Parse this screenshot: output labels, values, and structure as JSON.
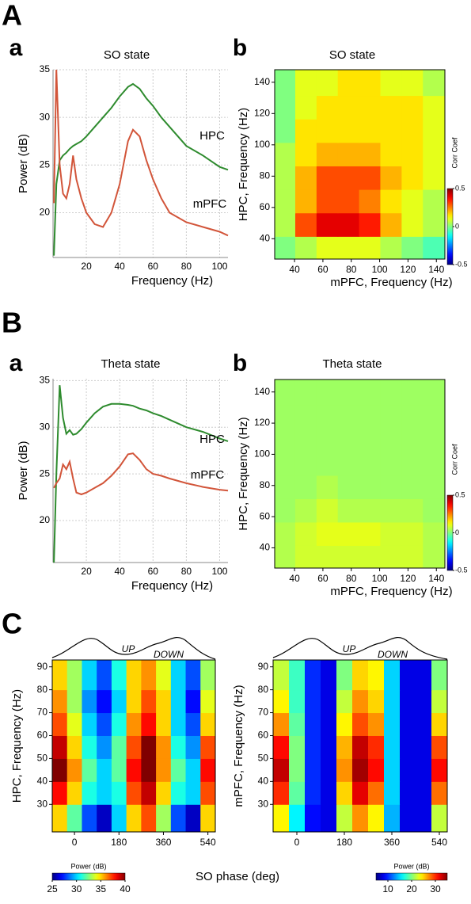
{
  "sections": [
    "A",
    "B",
    "C"
  ],
  "chart_data": [
    {
      "type": "line",
      "panel_label": "a",
      "title": "SO state",
      "xlabel": "Frequency (Hz)",
      "ylabel": "Power (dB)",
      "xlim": [
        0,
        105
      ],
      "ylim": [
        15.3,
        35
      ],
      "xticks": [
        20,
        40,
        60,
        80,
        100
      ],
      "yticks": [
        20,
        25,
        30,
        35
      ],
      "grid": true,
      "x": [
        0.5,
        2,
        4,
        6,
        8,
        10,
        12,
        14,
        17,
        20,
        25,
        30,
        35,
        40,
        45,
        48,
        52,
        56,
        60,
        65,
        70,
        80,
        90,
        100,
        105
      ],
      "series": [
        {
          "name": "HPC",
          "color": "#2e8b2e",
          "values": [
            15.5,
            23,
            25.5,
            26,
            26.3,
            26.7,
            27,
            27.2,
            27.5,
            28,
            29,
            30,
            31,
            32.2,
            33.2,
            33.5,
            33,
            32,
            31.2,
            30,
            29,
            27,
            26,
            24.8,
            24.5
          ]
        },
        {
          "name": "mPFC",
          "color": "#d2553a",
          "values": [
            21,
            35,
            25,
            22,
            21.5,
            23,
            26,
            23.5,
            21.5,
            20,
            18.8,
            18.5,
            20,
            23,
            27.5,
            28.7,
            28,
            25.5,
            23.5,
            21.5,
            20,
            19,
            18.5,
            18,
            17.6
          ]
        }
      ]
    },
    {
      "type": "heatmap",
      "panel_label": "b",
      "title": "SO state",
      "xlabel": "mPFC, Frequency (Hz)",
      "ylabel": "HPC, Frequency (Hz)",
      "xlim": [
        26,
        146
      ],
      "ylim": [
        27,
        148
      ],
      "xticks": [
        40,
        60,
        80,
        100,
        120,
        140
      ],
      "yticks": [
        40,
        60,
        80,
        100,
        120,
        140
      ],
      "colormap": "jet",
      "x": [
        33,
        48,
        63,
        78,
        93,
        108,
        123,
        138
      ],
      "y": [
        34,
        49,
        64,
        79,
        94,
        109,
        124,
        139
      ],
      "values": [
        [
          0.0,
          0.05,
          0.1,
          0.1,
          0.1,
          0.05,
          0.0,
          -0.05
        ],
        [
          0.05,
          0.3,
          0.4,
          0.4,
          0.35,
          0.2,
          0.1,
          0.05
        ],
        [
          0.05,
          0.2,
          0.3,
          0.3,
          0.25,
          0.15,
          0.1,
          0.05
        ],
        [
          0.05,
          0.2,
          0.3,
          0.3,
          0.3,
          0.2,
          0.15,
          0.1
        ],
        [
          0.05,
          0.15,
          0.2,
          0.2,
          0.2,
          0.15,
          0.15,
          0.1
        ],
        [
          0.0,
          0.15,
          0.15,
          0.15,
          0.15,
          0.15,
          0.15,
          0.1
        ],
        [
          0.0,
          0.1,
          0.15,
          0.15,
          0.15,
          0.15,
          0.15,
          0.1
        ],
        [
          0.0,
          0.1,
          0.1,
          0.15,
          0.15,
          0.1,
          0.1,
          0.05
        ]
      ],
      "colorbar": {
        "label": "Corr Coef",
        "range": [
          -0.5,
          0.5
        ],
        "ticks": [
          0.5,
          0,
          -0.5
        ]
      }
    },
    {
      "type": "line",
      "panel_label": "a",
      "title": "Theta state",
      "xlabel": "Frequency (Hz)",
      "ylabel": "Power (dB)",
      "xlim": [
        0,
        105
      ],
      "ylim": [
        15.5,
        35.2
      ],
      "xticks": [
        20,
        40,
        60,
        80,
        100
      ],
      "yticks": [
        20,
        25,
        30,
        35
      ],
      "grid": true,
      "x": [
        0.5,
        2,
        4,
        6,
        8,
        10,
        12,
        14,
        17,
        20,
        25,
        30,
        35,
        40,
        45,
        48,
        52,
        56,
        60,
        65,
        70,
        80,
        90,
        100,
        105
      ],
      "series": [
        {
          "name": "HPC",
          "color": "#2e8b2e",
          "values": [
            15.5,
            25,
            34.5,
            31,
            29.3,
            29.7,
            29.2,
            29.3,
            29.8,
            30.5,
            31.5,
            32.2,
            32.5,
            32.5,
            32.4,
            32.3,
            32,
            31.8,
            31.5,
            31.2,
            30.8,
            30,
            29.5,
            28.8,
            28.5
          ]
        },
        {
          "name": "mPFC",
          "color": "#d2553a",
          "values": [
            23.5,
            24,
            24.5,
            26,
            25.5,
            26.3,
            24.5,
            23,
            22.8,
            23,
            23.5,
            24,
            24.8,
            25.8,
            27.1,
            27.2,
            26.5,
            25.5,
            25,
            24.8,
            24.5,
            24,
            23.6,
            23.3,
            23.2
          ]
        }
      ]
    },
    {
      "type": "heatmap",
      "panel_label": "b",
      "title": "Theta state",
      "xlabel": "mPFC, Frequency (Hz)",
      "ylabel": "HPC, Frequency (Hz)",
      "xlim": [
        26,
        146
      ],
      "ylim": [
        27,
        148
      ],
      "xticks": [
        40,
        60,
        80,
        100,
        120,
        140
      ],
      "yticks": [
        40,
        60,
        80,
        100,
        120,
        140
      ],
      "colormap": "jet",
      "x": [
        33,
        48,
        63,
        78,
        93,
        108,
        123,
        138
      ],
      "y": [
        34,
        49,
        64,
        79,
        94,
        109,
        124,
        139
      ],
      "values": [
        [
          0.05,
          0.08,
          0.08,
          0.08,
          0.08,
          0.08,
          0.08,
          0.05
        ],
        [
          0.05,
          0.08,
          0.1,
          0.1,
          0.1,
          0.08,
          0.08,
          0.05
        ],
        [
          0.03,
          0.05,
          0.08,
          0.05,
          0.05,
          0.05,
          0.05,
          0.03
        ],
        [
          0.03,
          0.03,
          0.05,
          0.03,
          0.03,
          0.03,
          0.03,
          0.03
        ],
        [
          0.03,
          0.03,
          0.03,
          0.03,
          0.03,
          0.03,
          0.03,
          0.03
        ],
        [
          0.03,
          0.03,
          0.03,
          0.03,
          0.03,
          0.03,
          0.03,
          0.03
        ],
        [
          0.03,
          0.03,
          0.03,
          0.03,
          0.03,
          0.03,
          0.03,
          0.03
        ],
        [
          0.03,
          0.03,
          0.03,
          0.03,
          0.03,
          0.03,
          0.03,
          0.03
        ]
      ],
      "colorbar": {
        "label": "Corr Coef",
        "range": [
          -0.5,
          0.5
        ],
        "ticks": [
          0.5,
          0,
          -0.5
        ]
      }
    },
    {
      "type": "heatmap",
      "xlabel": "SO phase (deg)",
      "ylabel": "HPC, Frequency (Hz)",
      "annotations": [
        "UP",
        "DOWN"
      ],
      "xlim": [
        -90,
        570
      ],
      "ylim": [
        18,
        93
      ],
      "xticks": [
        0,
        180,
        360,
        540
      ],
      "yticks": [
        30,
        40,
        50,
        60,
        70,
        80,
        90
      ],
      "colormap": "jet",
      "x": [
        -60,
        0,
        60,
        120,
        180,
        240,
        300,
        360,
        420,
        480,
        540
      ],
      "y": [
        25,
        35,
        45,
        55,
        65,
        75,
        85
      ],
      "values": [
        [
          35,
          32,
          28,
          26,
          30,
          35,
          37,
          33,
          28,
          26,
          35
        ],
        [
          38,
          35,
          31,
          30,
          31,
          37,
          39,
          35,
          31,
          30,
          37
        ],
        [
          40,
          36,
          32,
          30,
          32,
          38,
          40,
          36,
          32,
          30,
          38
        ],
        [
          39,
          35,
          31,
          29,
          32,
          37,
          40,
          36,
          31,
          29,
          37
        ],
        [
          37,
          34,
          30,
          28,
          31,
          36,
          38,
          35,
          30,
          28,
          35
        ],
        [
          36,
          33,
          29,
          27,
          30,
          35,
          37,
          35,
          30,
          27,
          34
        ],
        [
          35,
          33,
          30,
          28,
          31,
          35,
          36,
          34,
          30,
          28,
          33
        ]
      ],
      "colorbar": {
        "label": "Power (dB)",
        "range": [
          25,
          40
        ],
        "ticks": [
          25,
          30,
          35,
          40
        ]
      }
    },
    {
      "type": "heatmap",
      "ylabel": "mPFC, Frequency (Hz)",
      "annotations": [
        "UP",
        "DOWN"
      ],
      "xlim": [
        -90,
        570
      ],
      "ylim": [
        18,
        93
      ],
      "xticks": [
        0,
        180,
        360,
        540
      ],
      "yticks": [
        30,
        40,
        50,
        60,
        70,
        80,
        90
      ],
      "colormap": "jet",
      "x": [
        -60,
        0,
        60,
        120,
        180,
        240,
        300,
        360,
        420,
        480,
        540
      ],
      "y": [
        25,
        35,
        45,
        55,
        65,
        75,
        85
      ],
      "values": [
        [
          24,
          16,
          9,
          8,
          22,
          27,
          24,
          14,
          8,
          8,
          22
        ],
        [
          30,
          19,
          10,
          8,
          25,
          32,
          28,
          15,
          8,
          8,
          28
        ],
        [
          33,
          20,
          10,
          8,
          27,
          34,
          31,
          15,
          8,
          8,
          31
        ],
        [
          31,
          20,
          10,
          8,
          26,
          33,
          30,
          15,
          8,
          8,
          29
        ],
        [
          27,
          19,
          10,
          8,
          24,
          29,
          27,
          15,
          8,
          8,
          25
        ],
        [
          24,
          18,
          10,
          8,
          22,
          27,
          25,
          15,
          8,
          8,
          22
        ],
        [
          22,
          18,
          10,
          8,
          20,
          25,
          24,
          15,
          8,
          8,
          20
        ]
      ],
      "colorbar": {
        "label": "Power (dB)",
        "range": [
          5,
          35
        ],
        "ticks": [
          10,
          20,
          30
        ]
      }
    }
  ]
}
